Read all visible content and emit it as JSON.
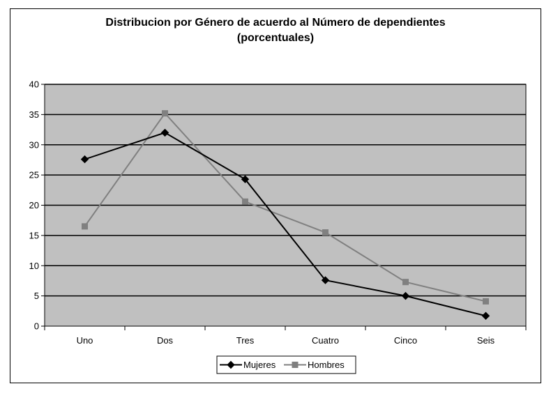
{
  "chart_data": {
    "type": "line",
    "title": "Distribucion por Género de acuerdo al Número de dependientes",
    "subtitle": "(porcentuales)",
    "categories": [
      "Uno",
      "Dos",
      "Tres",
      "Cuatro",
      "Cinco",
      "Seis"
    ],
    "series": [
      {
        "name": "Mujeres",
        "values": [
          27.6,
          32.0,
          24.3,
          7.6,
          5.0,
          1.7
        ],
        "color": "#000000",
        "marker": "diamond"
      },
      {
        "name": "Hombres",
        "values": [
          16.5,
          35.2,
          20.6,
          15.5,
          7.3,
          4.1
        ],
        "color": "#808080",
        "marker": "square"
      }
    ],
    "ylim": [
      0,
      40
    ],
    "yticks": [
      "0",
      "5",
      "10",
      "15",
      "20",
      "25",
      "30",
      "35",
      "40"
    ],
    "grid": true,
    "plot_background": "#c0c0c0",
    "legend_position": "bottom"
  }
}
